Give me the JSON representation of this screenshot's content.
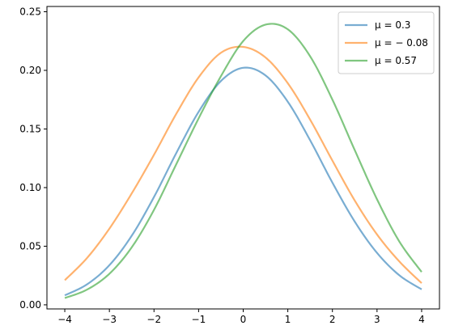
{
  "chart_data": {
    "type": "line",
    "title": "",
    "xlabel": "",
    "ylabel": "",
    "xlim": [
      -4.4,
      4.4
    ],
    "ylim": [
      -0.0035,
      0.2545
    ],
    "xticks": [
      -4,
      -3,
      -2,
      -1,
      0,
      1,
      2,
      3,
      4
    ],
    "xtick_labels": [
      "−4",
      "−3",
      "−2",
      "−1",
      "0",
      "1",
      "2",
      "3",
      "4"
    ],
    "yticks": [
      0.0,
      0.05,
      0.1,
      0.15,
      0.2,
      0.25
    ],
    "ytick_labels": [
      "0.00",
      "0.05",
      "0.10",
      "0.15",
      "0.20",
      "0.25"
    ],
    "grid": false,
    "legend_position": "top-right",
    "x": [
      -4,
      -3.5,
      -3,
      -2.5,
      -2,
      -1.5,
      -1,
      -0.5,
      0,
      0.5,
      1,
      1.5,
      2,
      2.5,
      3,
      3.5,
      4
    ],
    "series": [
      {
        "name": "μ = 0.3",
        "color": "#1f77b4",
        "values": [
          0.0081,
          0.0175,
          0.0338,
          0.0589,
          0.092,
          0.1295,
          0.1646,
          0.1909,
          0.2022,
          0.1957,
          0.1732,
          0.1404,
          0.1042,
          0.071,
          0.0443,
          0.0252,
          0.0132
        ]
      },
      {
        "name": "μ = − 0.08",
        "color": "#ff7f0e",
        "values": [
          0.021,
          0.04,
          0.065,
          0.095,
          0.128,
          0.163,
          0.194,
          0.215,
          0.22,
          0.211,
          0.189,
          0.158,
          0.123,
          0.089,
          0.06,
          0.037,
          0.0185
        ]
      },
      {
        "name": "μ = 0.57",
        "color": "#2ca02c",
        "values": [
          0.0058,
          0.013,
          0.0265,
          0.049,
          0.081,
          0.12,
          0.159,
          0.195,
          0.225,
          0.239,
          0.235,
          0.212,
          0.175,
          0.132,
          0.09,
          0.054,
          0.028
        ]
      }
    ]
  }
}
